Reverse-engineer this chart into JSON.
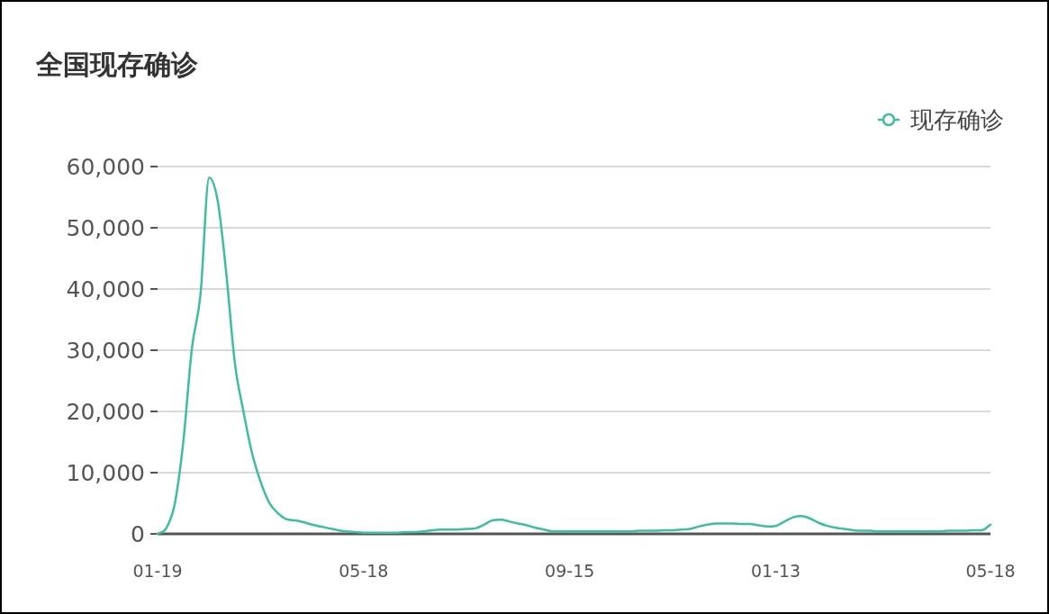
{
  "chart_data": {
    "type": "line",
    "title": "全国现存确诊",
    "categories": [
      "01-19",
      null,
      null,
      null,
      null,
      null,
      null,
      null,
      null,
      null,
      null,
      null,
      null,
      null,
      null,
      null,
      null,
      null,
      null,
      null,
      null,
      null,
      null,
      null,
      "05-18",
      null,
      null,
      null,
      null,
      null,
      null,
      null,
      null,
      null,
      null,
      null,
      null,
      null,
      null,
      null,
      null,
      null,
      null,
      null,
      null,
      null,
      null,
      null,
      "09-15",
      null,
      null,
      null,
      null,
      null,
      null,
      null,
      null,
      null,
      null,
      null,
      null,
      null,
      null,
      null,
      null,
      null,
      null,
      null,
      null,
      null,
      null,
      null,
      "01-13",
      null,
      null,
      null,
      null,
      null,
      null,
      null,
      null,
      null,
      null,
      null,
      null,
      null,
      null,
      null,
      null,
      null,
      null,
      null,
      null,
      null,
      null,
      null,
      null,
      "05-18"
    ],
    "series": [
      {
        "name": "现存确诊",
        "color": "#3dbf9f",
        "values": [
          0,
          900,
          4900,
          15100,
          30300,
          39100,
          58200,
          54400,
          42600,
          27900,
          20000,
          13200,
          8500,
          5100,
          3400,
          2400,
          2200,
          1900,
          1500,
          1200,
          900,
          600,
          400,
          300,
          200,
          200,
          200,
          200,
          200,
          300,
          300,
          400,
          600,
          700,
          700,
          700,
          800,
          900,
          1500,
          2200,
          2300,
          2000,
          1700,
          1400,
          1000,
          700,
          400,
          400,
          400,
          400,
          400,
          400,
          400,
          400,
          400,
          400,
          500,
          500,
          500,
          600,
          600,
          700,
          800,
          1200,
          1500,
          1700,
          1700,
          1700,
          1600,
          1600,
          1400,
          1200,
          1300,
          2000,
          2700,
          2900,
          2500,
          1800,
          1300,
          1000,
          800,
          600,
          500,
          500,
          400,
          400,
          400,
          400,
          400,
          400,
          400,
          400,
          500,
          500,
          500,
          600,
          600,
          1500
        ]
      }
    ],
    "ylim": [
      0,
      60000
    ],
    "yticks": [
      {
        "value": 0,
        "label": "0"
      },
      {
        "value": 10000,
        "label": "10,000"
      },
      {
        "value": 20000,
        "label": "20,000"
      },
      {
        "value": 30000,
        "label": "30,000"
      },
      {
        "value": 40000,
        "label": "40,000"
      },
      {
        "value": 50000,
        "label": "50,000"
      },
      {
        "value": 60000,
        "label": "60,000"
      }
    ],
    "grid": "y",
    "legend": "top right",
    "marker": "none",
    "line_style": "solid"
  }
}
